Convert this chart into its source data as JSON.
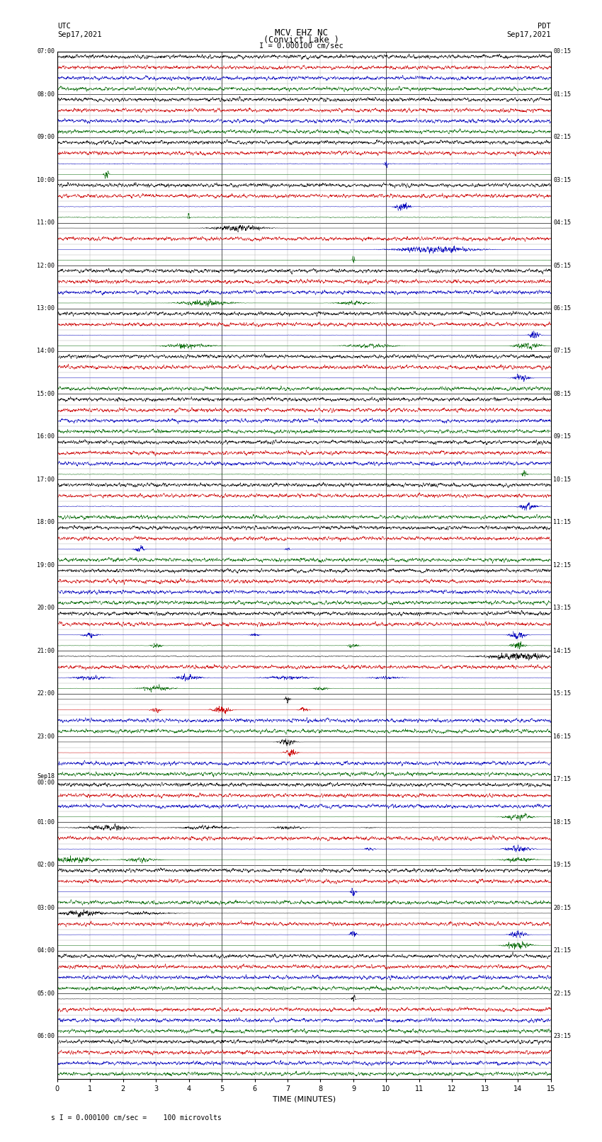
{
  "title_line1": "MCV EHZ NC",
  "title_line2": "(Convict Lake )",
  "title_line3": "I = 0.000100 cm/sec",
  "left_label_top": "UTC",
  "left_label_date": "Sep17,2021",
  "right_label_top": "PDT",
  "right_label_date": "Sep17,2021",
  "bottom_label": "TIME (MINUTES)",
  "bottom_note": "s I = 0.000100 cm/sec =    100 microvolts",
  "xlabel_ticks": [
    0,
    1,
    2,
    3,
    4,
    5,
    6,
    7,
    8,
    9,
    10,
    11,
    12,
    13,
    14,
    15
  ],
  "xlim": [
    0,
    15
  ],
  "figure_width": 8.5,
  "figure_height": 16.13,
  "background_color": "#ffffff",
  "grid_color": "#888888",
  "hour_labels_utc": [
    "07:00",
    "08:00",
    "09:00",
    "10:00",
    "11:00",
    "12:00",
    "13:00",
    "14:00",
    "15:00",
    "16:00",
    "17:00",
    "18:00",
    "19:00",
    "20:00",
    "21:00",
    "22:00",
    "23:00",
    "Sep18\n00:00",
    "01:00",
    "02:00",
    "03:00",
    "04:00",
    "05:00",
    "06:00"
  ],
  "hour_labels_pdt": [
    "00:15",
    "01:15",
    "02:15",
    "03:15",
    "04:15",
    "05:15",
    "06:15",
    "07:15",
    "08:15",
    "09:15",
    "10:15",
    "11:15",
    "12:15",
    "13:15",
    "14:15",
    "15:15",
    "16:15",
    "17:15",
    "18:15",
    "19:15",
    "20:15",
    "21:15",
    "22:15",
    "23:15"
  ],
  "n_hours": 24,
  "subrows": 4,
  "colors_cycle": [
    "#000000",
    "#cc0000",
    "#0000cc",
    "#006600"
  ],
  "black": "#000000",
  "red": "#cc0000",
  "blue": "#0000bb",
  "green": "#006600"
}
